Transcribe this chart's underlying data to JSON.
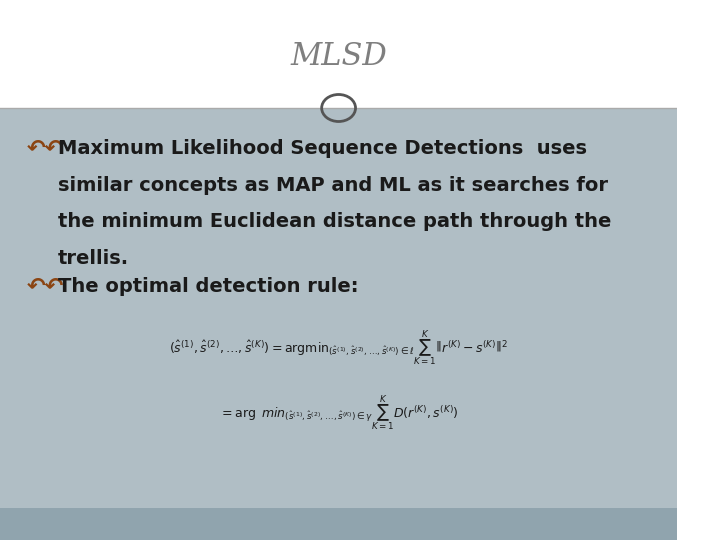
{
  "title": "MLSD",
  "title_color": "#7f7f7f",
  "bg_color_top": "#ffffff",
  "bg_color_main": "#b0bec5",
  "bg_color_bottom": "#90a4ae",
  "header_line_color": "#aaaaaa",
  "bullet_color": "#8B4513",
  "text_color": "#1a1a1a",
  "bullet1_line1": "Maximum Likelihood Sequence Detections  uses",
  "bullet1_line2": "similar concepts as MAP and ML as it searches for",
  "bullet1_line3": "the minimum Euclidean distance path through the",
  "bullet1_line4": "trellis.",
  "bullet2_text": "The optimal detection rule:",
  "figsize": [
    7.2,
    5.4
  ],
  "dpi": 100
}
